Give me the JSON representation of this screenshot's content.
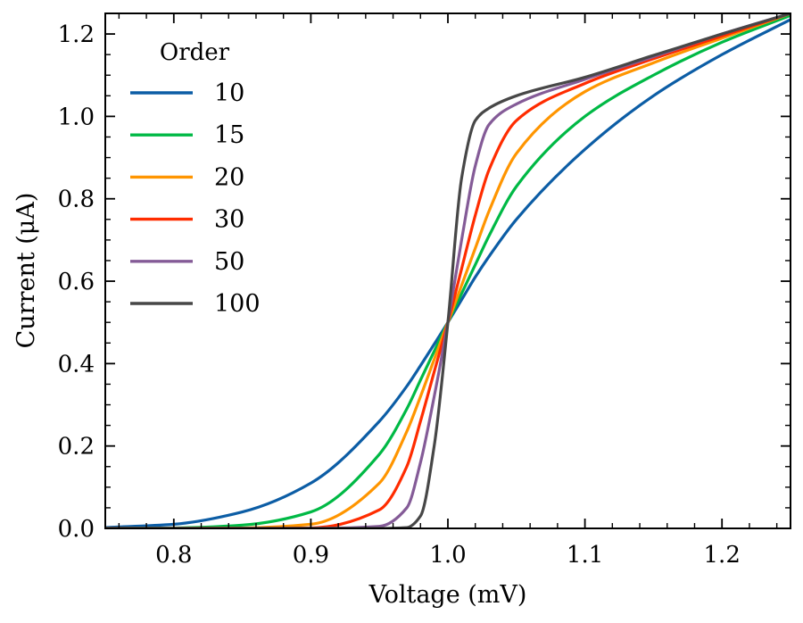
{
  "chart_data": {
    "type": "line",
    "xlabel": "Voltage (mV)",
    "ylabel": "Current (μA)",
    "xlim": [
      0.75,
      1.25
    ],
    "ylim": [
      0,
      1.25
    ],
    "x_ticks": [
      0.8,
      0.9,
      1.0,
      1.1,
      1.2
    ],
    "x_tick_labels": [
      "0.8",
      "0.9",
      "1.0",
      "1.1",
      "1.2"
    ],
    "y_ticks": [
      0,
      0.2,
      0.4,
      0.6,
      0.8,
      1.0,
      1.2
    ],
    "y_tick_labels": [
      "0.0",
      "0.2",
      "0.4",
      "0.6",
      "0.8",
      "1.0",
      "1.2"
    ],
    "grid": false,
    "legend": {
      "title": "Order",
      "position": "top-left"
    },
    "x": [
      0.75,
      0.8,
      0.85,
      0.9,
      0.95,
      0.97,
      0.98,
      0.99,
      1.0,
      1.01,
      1.02,
      1.03,
      1.05,
      1.1,
      1.15,
      1.2,
      1.25
    ],
    "series": [
      {
        "name": "10",
        "color": "#0C5DA5",
        "values": [
          0.002,
          0.01,
          0.04,
          0.11,
          0.26,
          0.345,
          0.395,
          0.447,
          0.5,
          0.555,
          0.61,
          0.66,
          0.75,
          0.92,
          1.05,
          1.15,
          1.235
        ]
      },
      {
        "name": "15",
        "color": "#00B945",
        "values": [
          0.0,
          0.001,
          0.008,
          0.04,
          0.18,
          0.29,
          0.36,
          0.43,
          0.5,
          0.57,
          0.64,
          0.71,
          0.83,
          1.0,
          1.1,
          1.18,
          1.245
        ]
      },
      {
        "name": "20",
        "color": "#FF9500",
        "values": [
          0.0,
          0.0,
          0.001,
          0.01,
          0.11,
          0.235,
          0.32,
          0.41,
          0.5,
          0.59,
          0.68,
          0.77,
          0.91,
          1.06,
          1.13,
          1.19,
          1.25
        ]
      },
      {
        "name": "30",
        "color": "#FF2C00",
        "values": [
          0.0,
          0.0,
          0.0,
          0.001,
          0.045,
          0.15,
          0.26,
          0.38,
          0.5,
          0.63,
          0.76,
          0.87,
          0.99,
          1.08,
          1.14,
          1.195,
          1.25
        ]
      },
      {
        "name": "50",
        "color": "#845B97",
        "values": [
          0.0,
          0.0,
          0.0,
          0.0,
          0.005,
          0.05,
          0.16,
          0.32,
          0.5,
          0.7,
          0.88,
          0.98,
          1.03,
          1.09,
          1.145,
          1.2,
          1.25
        ]
      },
      {
        "name": "100",
        "color": "#474747",
        "values": [
          0.0,
          0.0,
          0.0,
          0.0,
          0.0,
          0.002,
          0.03,
          0.2,
          0.5,
          0.85,
          0.99,
          1.02,
          1.05,
          1.095,
          1.148,
          1.2,
          1.25
        ]
      }
    ]
  }
}
